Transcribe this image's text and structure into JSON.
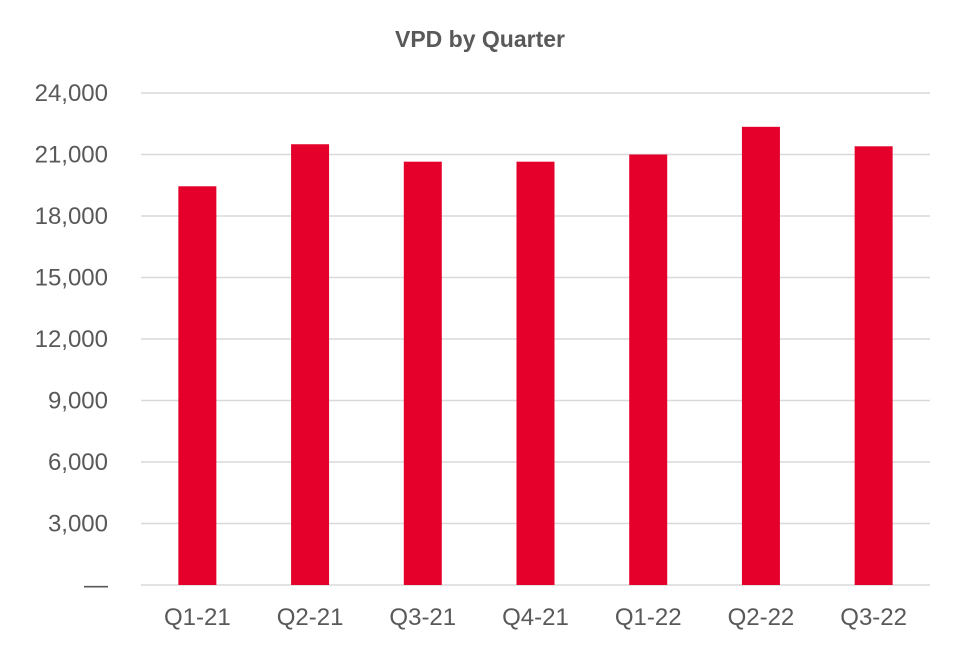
{
  "chart_data": {
    "type": "bar",
    "title": "VPD by Quarter",
    "categories": [
      "Q1-21",
      "Q2-21",
      "Q3-21",
      "Q4-21",
      "Q1-22",
      "Q2-22",
      "Q3-22"
    ],
    "series": [
      {
        "values": [
          19450,
          21500,
          20650,
          20650,
          21000,
          22350,
          21400
        ],
        "color": "#E4002B"
      }
    ],
    "ylim": [
      0,
      24000
    ],
    "yticks": [
      0,
      3000,
      6000,
      9000,
      12000,
      15000,
      18000,
      21000,
      24000
    ],
    "ytick_labels": [
      "—",
      "3,000",
      "6,000",
      "9,000",
      "12,000",
      "15,000",
      "18,000",
      "21,000",
      "24,000"
    ],
    "xlabel": "",
    "ylabel": "",
    "grid": true,
    "legend": "none",
    "colors": {
      "bar": "#E4002B",
      "grid": "#D9D9D9",
      "text": "#595959"
    }
  }
}
